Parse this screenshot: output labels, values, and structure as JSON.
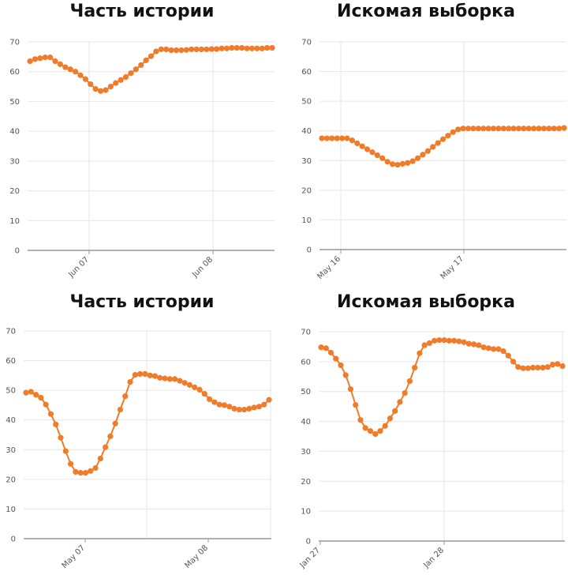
{
  "theme": {
    "series_color": "#f07c2a",
    "grid_color": "#e6e6e6",
    "axis_color": "#999999"
  },
  "chart_data": [
    {
      "type": "line",
      "title": "Часть истории",
      "ylim": [
        0,
        70
      ],
      "yticks": [
        0,
        10,
        20,
        30,
        40,
        50,
        60,
        70
      ],
      "xticks": [
        "Jun 07",
        "Jun 08"
      ],
      "grid": true,
      "series": [
        {
          "values": [
            63.5,
            64.2,
            64.5,
            64.8,
            64.8,
            63.5,
            62.5,
            61.5,
            60.8,
            60.0,
            58.8,
            57.5,
            55.8,
            54.2,
            53.5,
            53.8,
            55.0,
            56.2,
            57.2,
            58.2,
            59.5,
            60.8,
            62.2,
            63.8,
            65.2,
            66.8,
            67.5,
            67.5,
            67.2,
            67.2,
            67.2,
            67.3,
            67.5,
            67.5,
            67.5,
            67.5,
            67.6,
            67.6,
            67.8,
            67.8,
            68.0,
            68.0,
            68.0,
            67.8,
            67.8,
            67.8,
            67.8,
            68.0,
            68.0
          ]
        }
      ]
    },
    {
      "type": "line",
      "title": "Искомая выборка",
      "ylim": [
        0,
        70
      ],
      "yticks": [
        0,
        10,
        20,
        30,
        40,
        50,
        60,
        70
      ],
      "xticks": [
        "May 16",
        "May 17"
      ],
      "grid": true,
      "series": [
        {
          "values": [
            37.5,
            37.5,
            37.5,
            37.5,
            37.5,
            37.5,
            36.8,
            35.8,
            34.8,
            33.8,
            32.8,
            31.8,
            30.8,
            29.6,
            28.8,
            28.6,
            28.9,
            29.2,
            29.8,
            30.8,
            32.0,
            33.2,
            34.6,
            35.9,
            37.2,
            38.4,
            39.6,
            40.5,
            40.8,
            40.8,
            40.8,
            40.8,
            40.8,
            40.8,
            40.8,
            40.8,
            40.8,
            40.8,
            40.8,
            40.8,
            40.8,
            40.8,
            40.8,
            40.8,
            40.8,
            40.8,
            40.8,
            40.8,
            41.0
          ]
        }
      ]
    },
    {
      "type": "line",
      "title": "Часть истории",
      "ylim": [
        0,
        70
      ],
      "yticks": [
        0,
        10,
        20,
        30,
        40,
        50,
        60,
        70
      ],
      "xticks": [
        "May 07",
        "May 08"
      ],
      "grid": true,
      "series": [
        {
          "values": [
            49.2,
            49.5,
            48.5,
            47.5,
            45.2,
            42.0,
            38.5,
            34.0,
            29.5,
            25.2,
            22.5,
            22.2,
            22.2,
            22.8,
            23.8,
            27.0,
            30.8,
            34.5,
            38.8,
            43.5,
            48.0,
            52.8,
            55.2,
            55.5,
            55.5,
            55.0,
            54.8,
            54.2,
            54.0,
            53.8,
            53.8,
            53.2,
            52.5,
            51.8,
            51.0,
            50.2,
            48.8,
            47.0,
            46.0,
            45.2,
            45.0,
            44.5,
            43.8,
            43.5,
            43.5,
            43.8,
            44.2,
            44.5,
            45.2,
            46.8
          ]
        }
      ]
    },
    {
      "type": "line",
      "title": "Искомая выборка",
      "ylim": [
        0,
        70
      ],
      "yticks": [
        0,
        10,
        20,
        30,
        40,
        50,
        60,
        70
      ],
      "xticks": [
        "Jan 27",
        "Jan 28"
      ],
      "grid": true,
      "series": [
        {
          "values": [
            64.8,
            64.5,
            63.0,
            61.0,
            58.8,
            55.5,
            50.8,
            45.5,
            40.5,
            37.8,
            36.8,
            35.8,
            36.8,
            38.5,
            41.0,
            43.5,
            46.5,
            49.5,
            53.5,
            58.0,
            62.8,
            65.5,
            66.2,
            67.0,
            67.2,
            67.2,
            67.0,
            67.0,
            66.8,
            66.5,
            66.0,
            65.8,
            65.5,
            64.8,
            64.5,
            64.2,
            64.2,
            63.5,
            62.0,
            60.0,
            58.2,
            57.8,
            57.8,
            58.0,
            58.0,
            58.0,
            58.2,
            59.0,
            59.2,
            58.5
          ]
        }
      ]
    }
  ]
}
